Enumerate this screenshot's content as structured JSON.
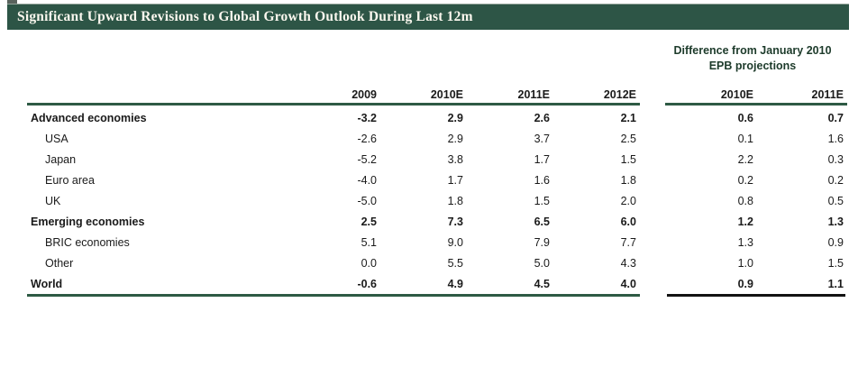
{
  "title": "Significant Upward Revisions to Global Growth Outlook During Last 12m",
  "diff_header": {
    "line1": "Difference from January 2010",
    "line2": "EPB projections"
  },
  "columns": [
    "2009",
    "2010E",
    "2011E",
    "2012E"
  ],
  "diff_columns": [
    "2010E",
    "2011E"
  ],
  "rows": [
    {
      "label": "Advanced economies",
      "bold": true,
      "indent": false,
      "values": [
        "-3.2",
        "2.9",
        "2.6",
        "2.1"
      ],
      "diff": [
        "0.6",
        "0.7"
      ]
    },
    {
      "label": "USA",
      "bold": false,
      "indent": true,
      "values": [
        "-2.6",
        "2.9",
        "3.7",
        "2.5"
      ],
      "diff": [
        "0.1",
        "1.6"
      ]
    },
    {
      "label": "Japan",
      "bold": false,
      "indent": true,
      "values": [
        "-5.2",
        "3.8",
        "1.7",
        "1.5"
      ],
      "diff": [
        "2.2",
        "0.3"
      ]
    },
    {
      "label": "Euro area",
      "bold": false,
      "indent": true,
      "values": [
        "-4.0",
        "1.7",
        "1.6",
        "1.8"
      ],
      "diff": [
        "0.2",
        "0.2"
      ]
    },
    {
      "label": "UK",
      "bold": false,
      "indent": true,
      "values": [
        "-5.0",
        "1.8",
        "1.5",
        "2.0"
      ],
      "diff": [
        "0.8",
        "0.5"
      ]
    },
    {
      "label": "Emerging economies",
      "bold": true,
      "indent": false,
      "values": [
        "2.5",
        "7.3",
        "6.5",
        "6.0"
      ],
      "diff": [
        "1.2",
        "1.3"
      ]
    },
    {
      "label": "BRIC economies",
      "bold": false,
      "indent": true,
      "values": [
        "5.1",
        "9.0",
        "7.9",
        "7.7"
      ],
      "diff": [
        "1.3",
        "0.9"
      ]
    },
    {
      "label": "Other",
      "bold": false,
      "indent": true,
      "values": [
        "0.0",
        "5.5",
        "5.0",
        "4.3"
      ],
      "diff": [
        "1.0",
        "1.5"
      ]
    },
    {
      "label": "World",
      "bold": true,
      "indent": false,
      "values": [
        "-0.6",
        "4.9",
        "4.5",
        "4.0"
      ],
      "diff": [
        "0.9",
        "1.1"
      ]
    }
  ],
  "colors": {
    "title_bar_green": "#2d5546",
    "rule_green": "#2e5a44",
    "rule_black": "#131313",
    "diff_header_text": "#1d3b2b",
    "title_text": "#faf7ee",
    "body_text": "#1a1a1a"
  }
}
